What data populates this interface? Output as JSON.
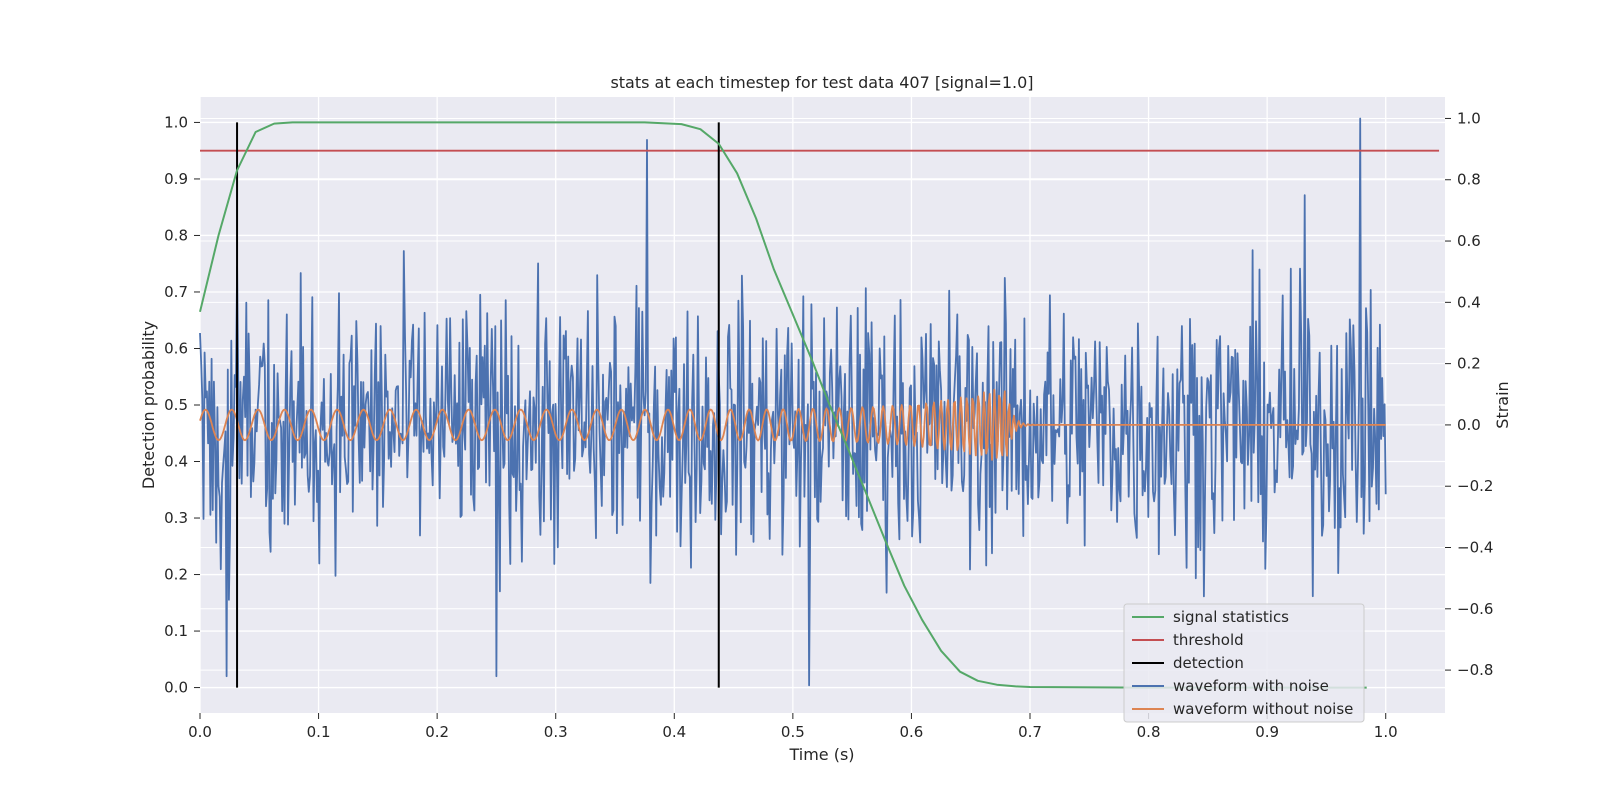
{
  "chart_data": {
    "type": "line",
    "title": "stats at each timestep for test data 407 [signal=1.0]",
    "xlabel": "Time (s)",
    "ylabel_left": "Detection probability",
    "ylabel_right": "Strain",
    "xlim": [
      0.0,
      1.05
    ],
    "ylim_left": [
      -0.045,
      1.045
    ],
    "ylim_right": [
      -0.94,
      1.07
    ],
    "x_ticks": [
      "0.0",
      "0.1",
      "0.2",
      "0.3",
      "0.4",
      "0.5",
      "0.6",
      "0.7",
      "0.8",
      "0.9",
      "1.0"
    ],
    "y_left_ticks": [
      "0.0",
      "0.1",
      "0.2",
      "0.3",
      "0.4",
      "0.5",
      "0.6",
      "0.7",
      "0.8",
      "0.9",
      "1.0"
    ],
    "y_right_ticks": [
      "−0.8",
      "−0.6",
      "−0.4",
      "−0.2",
      "0.0",
      "0.2",
      "0.4",
      "0.6",
      "0.8",
      "1.0"
    ],
    "grid": true,
    "legend_position": "lower-right",
    "colors": {
      "signal_statistics": "#55a868",
      "threshold": "#c44e52",
      "detection": "#000000",
      "waveform_with_noise": "#4c72b0",
      "waveform_without_noise": "#dd8452",
      "plot_background": "#eaeaf2"
    },
    "series": [
      {
        "name": "signal statistics",
        "axis": "left",
        "x": [
          0.0,
          0.0156,
          0.0312,
          0.0469,
          0.0625,
          0.078,
          0.1,
          0.2,
          0.3,
          0.375,
          0.406,
          0.422,
          0.4375,
          0.453,
          0.469,
          0.484,
          0.5,
          0.516,
          0.531,
          0.547,
          0.5625,
          0.578,
          0.594,
          0.609,
          0.625,
          0.641,
          0.656,
          0.672,
          0.688,
          0.7,
          0.8,
          0.9,
          0.984
        ],
        "values": [
          0.665,
          0.8,
          0.915,
          0.983,
          0.998,
          1.0,
          1.0,
          1.0,
          1.0,
          1.0,
          0.997,
          0.988,
          0.962,
          0.91,
          0.83,
          0.74,
          0.66,
          0.58,
          0.5,
          0.42,
          0.34,
          0.26,
          0.18,
          0.12,
          0.065,
          0.028,
          0.012,
          0.005,
          0.002,
          0.001,
          0.0,
          0.0,
          0.0
        ]
      },
      {
        "name": "threshold",
        "axis": "left",
        "x": [
          0.0,
          1.045
        ],
        "values": [
          0.95,
          0.95
        ]
      },
      {
        "name": "detection",
        "axis": "left",
        "x": [
          0.03125,
          0.4375
        ],
        "values": [
          1.0,
          1.0
        ]
      },
      {
        "name": "waveform with noise",
        "axis": "right",
        "sample_rate_hz": 1024,
        "duration_s": 1.0,
        "noise_amplitude": 0.3,
        "key_points": [
          {
            "x": 0.0,
            "y": 0.3
          },
          {
            "x": 0.0225,
            "y": -0.82
          },
          {
            "x": 0.25,
            "y": -0.82
          },
          {
            "x": 0.377,
            "y": 0.93
          },
          {
            "x": 0.514,
            "y": -0.85
          },
          {
            "x": 0.932,
            "y": 0.75
          },
          {
            "x": 0.979,
            "y": 1.0
          }
        ]
      },
      {
        "name": "waveform without noise",
        "axis": "right",
        "sample_rate_hz": 1024,
        "merger_time_s": 0.68,
        "amplitude_early": 0.05,
        "amplitude_peak": 0.13,
        "freq_start_hz": 45,
        "freq_end_hz": 250,
        "post_merger_value": 0.0
      }
    ],
    "legend": [
      "signal statistics",
      "threshold",
      "detection",
      "waveform with noise",
      "waveform without noise"
    ]
  }
}
